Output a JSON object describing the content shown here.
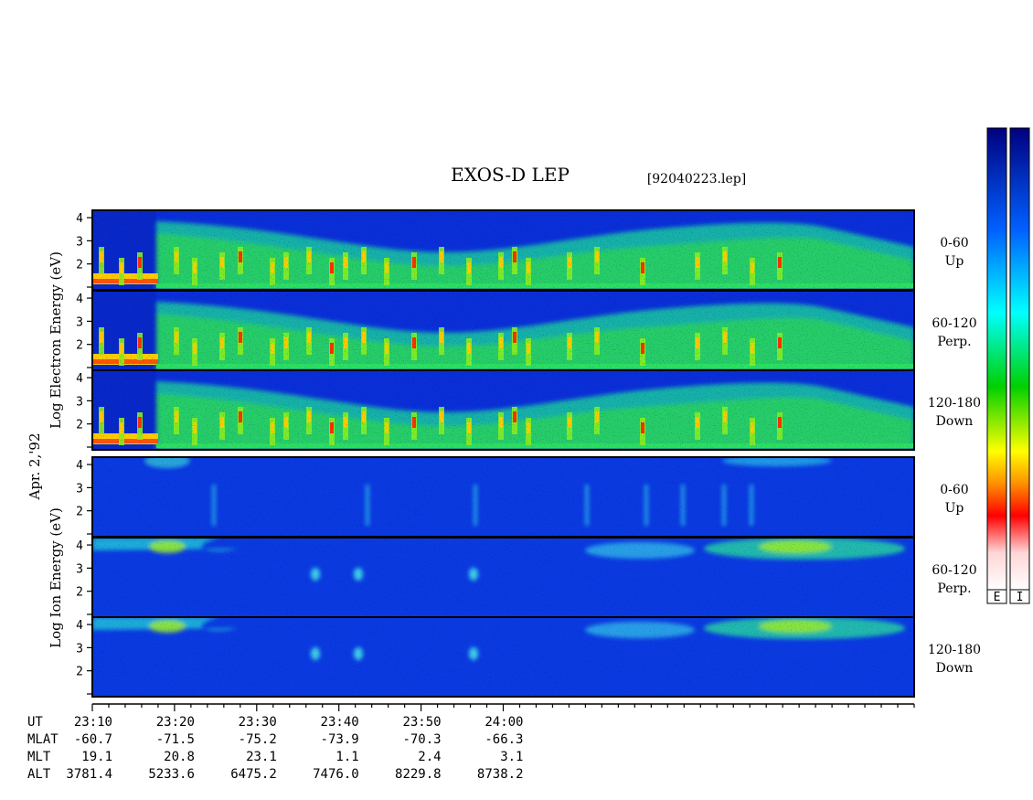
{
  "chart_data": {
    "type": "heatmap",
    "title": "EXOS-D LEP",
    "file_label": "[92040223.lep]",
    "date_label": "Apr. 2,'92",
    "electron_ylabel": "Log  Electron  Energy (eV)",
    "ion_ylabel": "Log  Ion  Energy (eV)",
    "y_ticks": [
      "1",
      "2",
      "3",
      "4"
    ],
    "ylim": [
      1,
      4.2
    ],
    "panels": [
      {
        "species": "Electron",
        "pitch": "0-60",
        "dir": "Up"
      },
      {
        "species": "Electron",
        "pitch": "60-120",
        "dir": "Perp."
      },
      {
        "species": "Electron",
        "pitch": "120-180",
        "dir": "Down"
      },
      {
        "species": "Ion",
        "pitch": "0-60",
        "dir": "Up"
      },
      {
        "species": "Ion",
        "pitch": "60-120",
        "dir": "Perp."
      },
      {
        "species": "Ion",
        "pitch": "120-180",
        "dir": "Down"
      }
    ],
    "x_range_minutes": [
      0,
      100
    ],
    "x_major_ticks": [
      0,
      10,
      20,
      30,
      40,
      50
    ],
    "x_minor_step": 2,
    "orbit_rows": [
      {
        "label": "UT",
        "values": [
          "23:10",
          "23:20",
          "23:30",
          "23:40",
          "23:50",
          "24:00"
        ]
      },
      {
        "label": "MLAT",
        "values": [
          "-60.7",
          "-71.5",
          "-75.2",
          "-73.9",
          "-70.3",
          "-66.3"
        ]
      },
      {
        "label": "MLT",
        "values": [
          "19.1",
          "20.8",
          "23.1",
          "1.1",
          "2.4",
          "3.1"
        ]
      },
      {
        "label": "ALT",
        "values": [
          "3781.4",
          "5233.6",
          "6475.2",
          "7476.0",
          "8229.8",
          "8738.2"
        ]
      }
    ],
    "colorbar_labels": [
      "E",
      "I"
    ],
    "colormap": [
      "#ffffff",
      "#ff0000",
      "#ffa000",
      "#ffff00",
      "#00d000",
      "#00ffff",
      "#0050ff",
      "#000080"
    ]
  }
}
